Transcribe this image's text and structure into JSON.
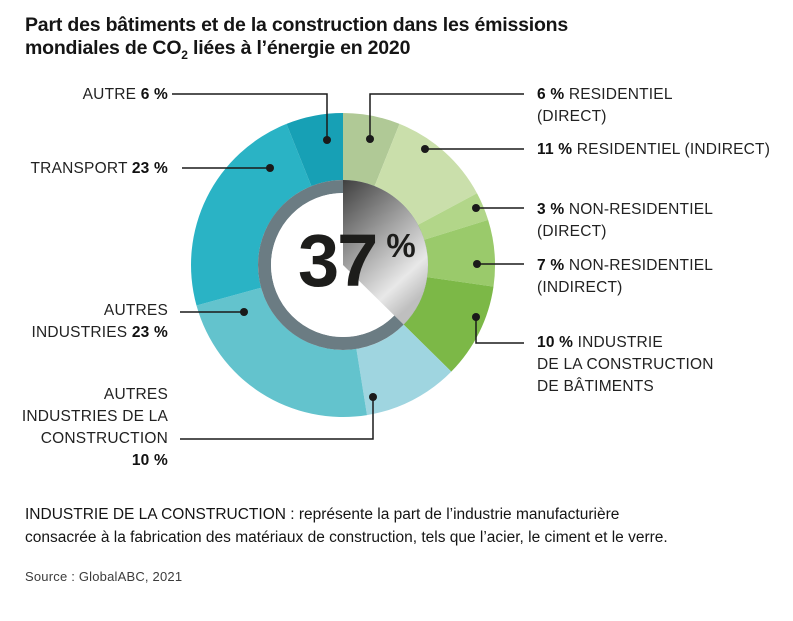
{
  "title": {
    "line1": "Part des bâtiments et de la construction dans les émissions",
    "line2_pre": "mondiales de CO",
    "line2_sub": "2",
    "line2_post": " liées à l’énergie en 2020"
  },
  "chart_data": {
    "type": "pie",
    "subtype": "donut",
    "title": "Part des bâtiments et de la construction dans les émissions mondiales de CO2 liées à l’énergie en 2020",
    "unit": "%",
    "values_sum_shown": 99,
    "center_value": "37",
    "center_unit": "%",
    "highlight": {
      "value": 37,
      "label": "37 %",
      "meaning": "part des bâtiments et de la construction"
    },
    "slices": [
      {
        "id": "res_direct",
        "label": "RESIDENTIEL (DIRECT)",
        "value": 6,
        "color": "#b0c996",
        "building": true
      },
      {
        "id": "res_indirect",
        "label": "RESIDENTIEL (INDIRECT)",
        "value": 11,
        "color": "#cadfab",
        "building": true
      },
      {
        "id": "nonres_direct",
        "label": "NON-RESIDENTIEL (DIRECT)",
        "value": 3,
        "color": "#b2d689",
        "building": true
      },
      {
        "id": "nonres_indirect",
        "label": "NON-RESIDENTIEL (INDIRECT)",
        "value": 7,
        "color": "#9aca6b",
        "building": true
      },
      {
        "id": "industrie_batiments",
        "label": "INDUSTRIE DE LA CONSTRUCTION DE BÂTIMENTS",
        "value": 10,
        "color": "#7cb847",
        "building": true
      },
      {
        "id": "autres_ind_constr",
        "label": "AUTRES INDUSTRIES DE LA CONSTRUCTION",
        "value": 10,
        "color": "#9fd5e0",
        "building": false
      },
      {
        "id": "autres_industries",
        "label": "AUTRES INDUSTRIES",
        "value": 23,
        "color": "#63c3cd",
        "building": false
      },
      {
        "id": "transport",
        "label": "TRANSPORT",
        "value": 23,
        "color": "#2ab3c5",
        "building": false
      },
      {
        "id": "autre",
        "label": "AUTRE",
        "value": 6,
        "color": "#17a0b5",
        "building": false
      }
    ],
    "labels": [
      {
        "id": "autre",
        "side": "left",
        "lines": [
          [
            {
              "t": "AUTRE ",
              "b": false
            },
            {
              "t": "6 %",
              "b": true
            }
          ]
        ]
      },
      {
        "id": "transport",
        "side": "left",
        "lines": [
          [
            {
              "t": "TRANSPORT ",
              "b": false
            },
            {
              "t": "23 %",
              "b": true
            }
          ]
        ]
      },
      {
        "id": "autres_industries",
        "side": "left",
        "lines": [
          [
            {
              "t": "AUTRES",
              "b": false
            }
          ],
          [
            {
              "t": "INDUSTRIES ",
              "b": false
            },
            {
              "t": "23 %",
              "b": true
            }
          ]
        ]
      },
      {
        "id": "autres_ind_constr",
        "side": "left",
        "lines": [
          [
            {
              "t": "AUTRES",
              "b": false
            }
          ],
          [
            {
              "t": "INDUSTRIES DE LA",
              "b": false
            }
          ],
          [
            {
              "t": "CONSTRUCTION",
              "b": false
            }
          ],
          [
            {
              "t": "10 %",
              "b": true
            }
          ]
        ]
      },
      {
        "id": "res_direct",
        "side": "right",
        "lines": [
          [
            {
              "t": "6 % ",
              "b": true
            },
            {
              "t": "RESIDENTIEL",
              "b": false
            }
          ],
          [
            {
              "t": "(DIRECT)",
              "b": false
            }
          ]
        ]
      },
      {
        "id": "res_indirect",
        "side": "right",
        "lines": [
          [
            {
              "t": "11 % ",
              "b": true
            },
            {
              "t": "RESIDENTIEL (INDIRECT)",
              "b": false
            }
          ]
        ]
      },
      {
        "id": "nonres_direct",
        "side": "right",
        "lines": [
          [
            {
              "t": "3 % ",
              "b": true
            },
            {
              "t": "NON-RESIDENTIEL",
              "b": false
            }
          ],
          [
            {
              "t": "(DIRECT)",
              "b": false
            }
          ]
        ]
      },
      {
        "id": "nonres_indirect",
        "side": "right",
        "lines": [
          [
            {
              "t": "7 % ",
              "b": true
            },
            {
              "t": "NON-RESIDENTIEL",
              "b": false
            }
          ],
          [
            {
              "t": "(INDIRECT)",
              "b": false
            }
          ]
        ]
      },
      {
        "id": "industrie_batiments",
        "side": "right",
        "lines": [
          [
            {
              "t": "10 % ",
              "b": true
            },
            {
              "t": "INDUSTRIE",
              "b": false
            }
          ],
          [
            {
              "t": "DE LA CONSTRUCTION",
              "b": false
            }
          ],
          [
            {
              "t": "DE BÂTIMENTS",
              "b": false
            }
          ]
        ]
      }
    ],
    "legend_position": "callout-labels",
    "grid": false
  },
  "colors": {
    "inner_ring": "#6b7c83",
    "hole": "#ffffff",
    "leader_line": "#1a1a1a",
    "wedge_gradient": [
      "#3f3f3f",
      "#9c9c9c",
      "#e8e8e8",
      "#bfbfbf"
    ]
  },
  "footnote": {
    "line1": "INDUSTRIE DE LA CONSTRUCTION : représente la part de l’industrie manufacturière",
    "line2": "consacrée à la fabrication des matériaux de construction, tels que l’acier, le ciment et le verre."
  },
  "source": "Source : GlobalABC, 2021"
}
